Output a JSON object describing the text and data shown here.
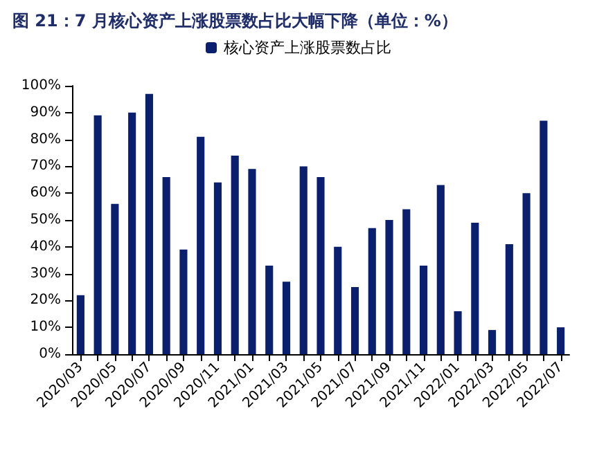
{
  "chart_data": {
    "type": "bar",
    "title": "图 21：7 月核心资产上涨股票数占比大幅下降（单位：%）",
    "categories": [
      "2020/03",
      null,
      "2020/05",
      null,
      "2020/07",
      null,
      "2020/09",
      null,
      "2020/11",
      null,
      "2021/01",
      null,
      "2021/03",
      null,
      "2021/05",
      null,
      "2021/07",
      null,
      "2021/09",
      null,
      "2021/11",
      null,
      "2022/01",
      null,
      "2022/03",
      null,
      "2022/05",
      null,
      "2022/07"
    ],
    "series": [
      {
        "name": "核心资产上涨股票数占比",
        "color": "#0a1f6e",
        "values": [
          22,
          89,
          56,
          90,
          97,
          66,
          39,
          81,
          64,
          74,
          69,
          33,
          27,
          70,
          66,
          40,
          25,
          47,
          50,
          54,
          33,
          63,
          16,
          49,
          9,
          41,
          60,
          87,
          10
        ]
      }
    ],
    "ylim": [
      0,
      100
    ],
    "yticks": [
      {
        "value": 0,
        "label": "0%"
      },
      {
        "value": 10,
        "label": "10%"
      },
      {
        "value": 20,
        "label": "20%"
      },
      {
        "value": 30,
        "label": "30%"
      },
      {
        "value": 40,
        "label": "40%"
      },
      {
        "value": 50,
        "label": "50%"
      },
      {
        "value": 60,
        "label": "60%"
      },
      {
        "value": 70,
        "label": "70%"
      },
      {
        "value": 80,
        "label": "80%"
      },
      {
        "value": 90,
        "label": "90%"
      },
      {
        "value": 100,
        "label": "100%"
      }
    ],
    "grid": false,
    "legend": "top"
  }
}
